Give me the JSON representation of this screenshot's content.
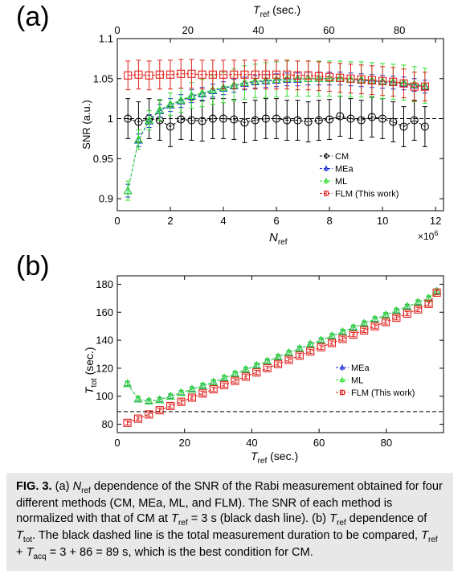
{
  "panels": {
    "a_label": "(a)",
    "b_label": "(b)"
  },
  "colors": {
    "CM": "#000000",
    "MEa": "#1a2ad6",
    "ML": "#2ee02e",
    "FLM": "#e0201c"
  },
  "chart_data": [
    {
      "type": "scatter",
      "panel": "(a)",
      "xlabel": "N_ref",
      "xlabel_main": "N",
      "xlabel_sub": "ref",
      "x_multiplier_label": "×10^6",
      "x_mult_base": "×10",
      "x_mult_exp": "6",
      "top_xlabel_main": "T",
      "top_xlabel_sub": "ref",
      "top_xlabel_unit": " (sec.)",
      "ylabel": "SNR (a.u.)",
      "xlim": [
        0,
        12.3
      ],
      "ylim": [
        0.885,
        1.1
      ],
      "xticks": [
        0,
        2,
        4,
        6,
        8,
        10,
        12
      ],
      "xtick_labels": [
        "0",
        "2",
        "4",
        "6",
        "8",
        "10",
        "12"
      ],
      "top_xticks": [
        0,
        20,
        40,
        60,
        80
      ],
      "top_xtick_labels": [
        "0",
        "20",
        "40",
        "60",
        "80"
      ],
      "yticks": [
        0.9,
        0.95,
        1,
        1.05,
        1.1
      ],
      "ytick_labels": [
        "0.9",
        "0.95",
        "1",
        "1.05",
        "1.1"
      ],
      "reference_line": {
        "y": 1.0,
        "style": "dashed",
        "color": "#000000"
      },
      "legend": {
        "position": "lower-right",
        "entries": [
          "CM",
          "MEa",
          "ML",
          "FLM (This work)"
        ]
      },
      "x": [
        0.4,
        0.8,
        1.2,
        1.6,
        2.0,
        2.4,
        2.8,
        3.2,
        3.6,
        4.0,
        4.4,
        4.8,
        5.2,
        5.6,
        6.0,
        6.4,
        6.8,
        7.2,
        7.6,
        8.0,
        8.4,
        8.8,
        9.2,
        9.6,
        10.0,
        10.4,
        10.8,
        11.2,
        11.6
      ],
      "series": [
        {
          "name": "CM",
          "marker": "circle",
          "values": [
            1.0,
            0.996,
            1.0,
            0.998,
            0.99,
            0.999,
            0.998,
            0.997,
            1.0,
            1.0,
            0.999,
            0.995,
            0.998,
            1.0,
            1.0,
            0.998,
            0.998,
            0.996,
            0.998,
            0.999,
            1.003,
            1.0,
            0.998,
            1.002,
            1.0,
            0.996,
            0.99,
            0.998,
            0.99
          ],
          "errors": [
            0.025,
            0.025,
            0.025,
            0.025,
            0.025,
            0.025,
            0.025,
            0.025,
            0.025,
            0.025,
            0.025,
            0.025,
            0.025,
            0.025,
            0.025,
            0.025,
            0.025,
            0.025,
            0.025,
            0.025,
            0.025,
            0.025,
            0.025,
            0.025,
            0.025,
            0.025,
            0.025,
            0.025,
            0.025
          ]
        },
        {
          "name": "MEa",
          "marker": "triangle",
          "values": [
            0.91,
            0.973,
            0.997,
            1.01,
            1.017,
            1.022,
            1.028,
            1.031,
            1.035,
            1.038,
            1.041,
            1.044,
            1.046,
            1.047,
            1.048,
            1.049,
            1.049,
            1.05,
            1.05,
            1.05,
            1.05,
            1.049,
            1.048,
            1.047,
            1.046,
            1.045,
            1.044,
            1.042,
            1.04
          ],
          "errors": [
            0.008,
            0.008,
            0.008,
            0.008,
            0.008,
            0.008,
            0.008,
            0.008,
            0.008,
            0.008,
            0.008,
            0.008,
            0.008,
            0.008,
            0.008,
            0.008,
            0.008,
            0.008,
            0.008,
            0.008,
            0.008,
            0.008,
            0.008,
            0.008,
            0.008,
            0.008,
            0.008,
            0.008,
            0.008
          ]
        },
        {
          "name": "ML",
          "marker": "triangle",
          "values": [
            0.91,
            0.974,
            0.998,
            1.011,
            1.018,
            1.023,
            1.029,
            1.032,
            1.036,
            1.039,
            1.042,
            1.045,
            1.047,
            1.048,
            1.049,
            1.05,
            1.05,
            1.05,
            1.05,
            1.05,
            1.05,
            1.049,
            1.049,
            1.048,
            1.047,
            1.046,
            1.045,
            1.043,
            1.041
          ],
          "errors": [
            0.012,
            0.012,
            0.012,
            0.013,
            0.014,
            0.015,
            0.016,
            0.017,
            0.018,
            0.019,
            0.02,
            0.021,
            0.021,
            0.022,
            0.022,
            0.022,
            0.022,
            0.022,
            0.022,
            0.022,
            0.022,
            0.022,
            0.022,
            0.022,
            0.022,
            0.022,
            0.022,
            0.022,
            0.022
          ]
        },
        {
          "name": "FLM (This work)",
          "marker": "square",
          "values": [
            1.054,
            1.055,
            1.054,
            1.055,
            1.055,
            1.056,
            1.056,
            1.055,
            1.055,
            1.055,
            1.055,
            1.055,
            1.055,
            1.055,
            1.055,
            1.055,
            1.054,
            1.054,
            1.053,
            1.052,
            1.051,
            1.05,
            1.049,
            1.048,
            1.047,
            1.046,
            1.044,
            1.04,
            1.04
          ],
          "errors": [
            0.018,
            0.018,
            0.018,
            0.018,
            0.018,
            0.018,
            0.018,
            0.018,
            0.018,
            0.018,
            0.018,
            0.018,
            0.018,
            0.018,
            0.018,
            0.018,
            0.018,
            0.018,
            0.018,
            0.018,
            0.018,
            0.018,
            0.018,
            0.018,
            0.018,
            0.018,
            0.018,
            0.018,
            0.018
          ]
        }
      ]
    },
    {
      "type": "scatter",
      "panel": "(b)",
      "xlabel": "T_ref (sec.)",
      "xlabel_main": "T",
      "xlabel_sub": "ref",
      "xlabel_unit": " (sec.)",
      "ylabel": "T_tot (sec.)",
      "ylabel_main": "T",
      "ylabel_sub": "tot",
      "ylabel_unit": " (sec.)",
      "xlim": [
        0,
        97
      ],
      "ylim": [
        74,
        186
      ],
      "xticks": [
        0,
        20,
        40,
        60,
        80
      ],
      "xtick_labels": [
        "0",
        "20",
        "40",
        "60",
        "80"
      ],
      "yticks": [
        80,
        100,
        120,
        140,
        160,
        180
      ],
      "ytick_labels": [
        "80",
        "100",
        "120",
        "140",
        "160",
        "180"
      ],
      "reference_line": {
        "y": 89,
        "style": "dashed",
        "color": "#000000"
      },
      "legend": {
        "position": "center-right",
        "entries": [
          "MEa",
          "ML",
          "FLM (This work)"
        ]
      },
      "x": [
        3,
        6.2,
        9.4,
        12.6,
        15.8,
        19,
        22.2,
        25.4,
        28.6,
        31.8,
        35,
        38.2,
        41.4,
        44.6,
        47.8,
        51,
        54.2,
        57.4,
        60.6,
        63.8,
        67,
        70.2,
        73.4,
        76.6,
        79.8,
        83,
        86.2,
        89.4,
        92.6,
        95
      ],
      "series": [
        {
          "name": "MEa",
          "marker": "triangle",
          "values": [
            109,
            98,
            96.5,
            97.5,
            100,
            102.5,
            105,
            107.5,
            110,
            113,
            116,
            119,
            122,
            125,
            128,
            131,
            134,
            137,
            140,
            143,
            146,
            149,
            152,
            155,
            158,
            161,
            164,
            167,
            170,
            175
          ],
          "errors": [
            1.5,
            1.5,
            1.5,
            1.5,
            1.5,
            1.5,
            1.5,
            1.5,
            1.5,
            1.5,
            1.5,
            1.5,
            1.5,
            1.5,
            1.5,
            1.5,
            1.5,
            1.5,
            1.5,
            1.5,
            1.5,
            1.5,
            1.5,
            1.5,
            1.5,
            1.5,
            1.5,
            1.5,
            1.5,
            1.5
          ]
        },
        {
          "name": "ML",
          "marker": "triangle",
          "values": [
            109,
            98,
            96.5,
            97.5,
            100,
            102.5,
            105,
            107.5,
            110,
            113,
            116,
            119,
            122,
            125,
            128,
            131,
            134,
            137,
            140,
            143,
            146,
            149,
            152,
            155,
            158,
            161,
            164,
            167,
            170,
            175
          ],
          "errors": [
            1.8,
            1.8,
            1.8,
            1.8,
            1.8,
            1.8,
            1.8,
            1.8,
            1.8,
            1.8,
            1.8,
            1.8,
            1.8,
            1.8,
            1.8,
            1.8,
            1.8,
            1.8,
            1.8,
            1.8,
            1.8,
            1.8,
            1.8,
            1.8,
            1.8,
            1.8,
            1.8,
            1.8,
            1.8,
            1.8
          ]
        },
        {
          "name": "FLM (This work)",
          "marker": "square",
          "values": [
            81,
            84,
            87,
            90,
            93,
            96,
            99,
            102,
            105,
            108,
            111,
            114,
            117,
            120,
            123,
            126,
            129,
            132,
            135,
            138,
            141,
            144,
            147,
            150,
            153,
            156,
            159,
            162,
            166,
            174
          ],
          "errors": [
            1.5,
            1.5,
            1.5,
            1.5,
            1.5,
            1.5,
            1.5,
            1.5,
            1.5,
            1.5,
            1.5,
            1.5,
            1.5,
            1.5,
            1.5,
            1.5,
            1.5,
            1.5,
            1.5,
            1.5,
            1.5,
            1.5,
            1.5,
            1.5,
            1.5,
            1.5,
            1.5,
            1.5,
            1.5,
            1.5
          ]
        }
      ]
    }
  ],
  "caption": {
    "label": "FIG. 3.",
    "t1": " (a) ",
    "s1_main": "N",
    "s1_sub": "ref",
    "t2": " dependence of the SNR of the Rabi measurement obtained for four different methods (CM, MEa, ML, and FLM). The SNR of each method is normalized with that of CM at ",
    "s2_main": "T",
    "s2_sub": "ref",
    "t3": " = 3 s (black dash line). (b) ",
    "s3_main": "T",
    "s3_sub": "ref",
    "t4": " dependence of ",
    "s4_main": "T",
    "s4_sub": "tot",
    "t5": ". The black dashed line is the total measurement duration to be compared, ",
    "s5_main": "T",
    "s5_sub": "ref",
    "t6": " + ",
    "s6_main": "T",
    "s6_sub": "acq",
    "t7": " = 3 + 86 = 89 s, which is the best condition for CM."
  }
}
